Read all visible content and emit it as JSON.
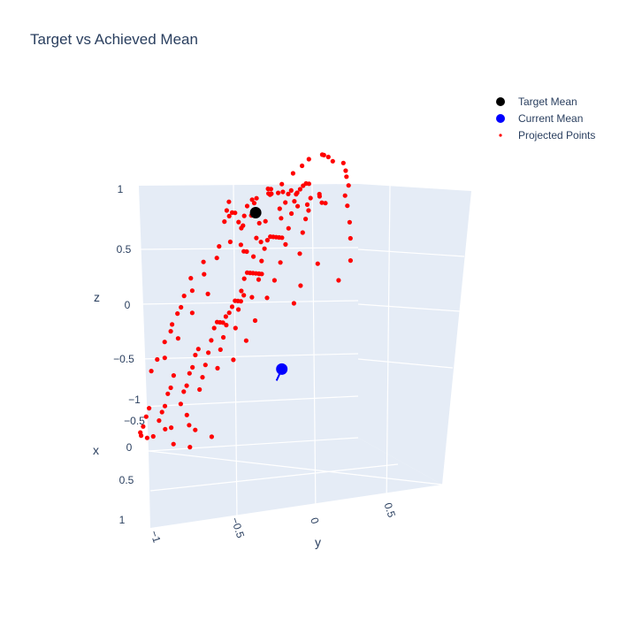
{
  "chart_data": {
    "type": "scatter",
    "title": "Target vs Achieved Mean",
    "axes": {
      "x": {
        "label": "x",
        "range": [
          -1,
          1
        ],
        "ticks": [
          "−1",
          "−0.5",
          "0",
          "0.5",
          "1"
        ]
      },
      "y": {
        "label": "y",
        "range": [
          -1,
          1
        ],
        "ticks": [
          "−1",
          "−0.5",
          "0",
          "0.5"
        ]
      },
      "z": {
        "label": "z",
        "range": [
          -1,
          1
        ],
        "ticks": [
          "1",
          "0.5",
          "0",
          "−0.5"
        ]
      }
    },
    "grid": true,
    "legend_position": "top-right",
    "colors": {
      "scene_bg": "#e5ecf6",
      "grid": "#ffffff",
      "text": "#2a3f5f"
    },
    "series": [
      {
        "name": "Target Mean",
        "color": "#000000",
        "marker": "circle-large",
        "points": [
          {
            "x": -0.55,
            "y": -0.75,
            "z": 0.55
          }
        ]
      },
      {
        "name": "Current Mean",
        "color": "#0000ff",
        "marker": "circle-large",
        "points": [
          {
            "x": 0.1,
            "y": 0.5,
            "z": -0.3
          }
        ]
      },
      {
        "name": "Projected Points",
        "color": "#ff0000",
        "marker": "circle-small",
        "points": [
          {
            "x": -0.9,
            "y": -0.35,
            "z": 0.95
          },
          {
            "x": -0.88,
            "y": -0.3,
            "z": 0.96
          },
          {
            "x": -0.85,
            "y": -0.2,
            "z": 0.97
          },
          {
            "x": -0.82,
            "y": -0.1,
            "z": 0.96
          },
          {
            "x": -0.85,
            "y": 0.0,
            "z": 0.95
          },
          {
            "x": -0.8,
            "y": 0.1,
            "z": 0.92
          },
          {
            "x": -0.75,
            "y": 0.18,
            "z": 0.9
          },
          {
            "x": -0.72,
            "y": 0.25,
            "z": 0.85
          },
          {
            "x": -0.65,
            "y": 0.3,
            "z": 0.8
          },
          {
            "x": -0.6,
            "y": 0.4,
            "z": 0.75
          },
          {
            "x": -0.55,
            "y": 0.5,
            "z": 0.65
          },
          {
            "x": -0.5,
            "y": 0.58,
            "z": 0.55
          },
          {
            "x": -0.45,
            "y": 0.65,
            "z": 0.4
          },
          {
            "x": -0.3,
            "y": 0.7,
            "z": 0.3
          },
          {
            "x": -0.88,
            "y": -0.5,
            "z": 0.9
          },
          {
            "x": -0.85,
            "y": -0.55,
            "z": 0.85
          },
          {
            "x": -0.8,
            "y": -0.6,
            "z": 0.8
          },
          {
            "x": -0.75,
            "y": -0.68,
            "z": 0.72
          },
          {
            "x": -0.7,
            "y": -0.75,
            "z": 0.65
          },
          {
            "x": -0.6,
            "y": -0.8,
            "z": 0.55
          },
          {
            "x": -0.5,
            "y": -0.85,
            "z": 0.45
          },
          {
            "x": -0.4,
            "y": -0.88,
            "z": 0.35
          },
          {
            "x": -0.3,
            "y": -0.92,
            "z": 0.25
          },
          {
            "x": -0.2,
            "y": -0.95,
            "z": 0.15
          },
          {
            "x": -0.1,
            "y": -0.97,
            "z": 0.05
          },
          {
            "x": 0.0,
            "y": -0.98,
            "z": -0.05
          },
          {
            "x": 0.1,
            "y": -0.96,
            "z": -0.15
          },
          {
            "x": 0.2,
            "y": -0.92,
            "z": -0.25
          },
          {
            "x": 0.3,
            "y": -0.88,
            "z": -0.35
          },
          {
            "x": 0.4,
            "y": -0.82,
            "z": -0.4
          },
          {
            "x": -0.65,
            "y": -0.55,
            "z": 0.5
          },
          {
            "x": -0.55,
            "y": -0.62,
            "z": 0.5
          },
          {
            "x": -0.6,
            "y": -0.5,
            "z": 0.6
          },
          {
            "x": -0.7,
            "y": -0.4,
            "z": 0.6
          },
          {
            "x": -0.72,
            "y": -0.3,
            "z": 0.62
          },
          {
            "x": -0.68,
            "y": -0.2,
            "z": 0.7
          },
          {
            "x": -0.75,
            "y": -0.1,
            "z": 0.65
          },
          {
            "x": -0.62,
            "y": 0.0,
            "z": 0.78
          },
          {
            "x": -0.55,
            "y": 0.1,
            "z": 0.8
          },
          {
            "x": -0.5,
            "y": 0.2,
            "z": 0.78
          },
          {
            "x": -0.4,
            "y": -0.6,
            "z": 0.6
          },
          {
            "x": -0.35,
            "y": -0.7,
            "z": 0.55
          },
          {
            "x": -0.25,
            "y": -0.75,
            "z": 0.58
          },
          {
            "x": -0.2,
            "y": -0.65,
            "z": 0.7
          },
          {
            "x": -0.15,
            "y": -0.55,
            "z": 0.8
          },
          {
            "x": -0.3,
            "y": -0.45,
            "z": 0.78
          },
          {
            "x": -0.4,
            "y": -0.35,
            "z": 0.8
          },
          {
            "x": -0.45,
            "y": -0.25,
            "z": 0.82
          },
          {
            "x": -0.3,
            "y": -0.2,
            "z": 0.9
          },
          {
            "x": -0.2,
            "y": -0.1,
            "z": 0.95
          },
          {
            "x": -0.35,
            "y": 0.0,
            "z": 0.9
          },
          {
            "x": -0.25,
            "y": 0.1,
            "z": 0.92
          },
          {
            "x": -0.15,
            "y": 0.2,
            "z": 0.9
          },
          {
            "x": -0.3,
            "y": 0.3,
            "z": 0.8
          },
          {
            "x": -0.2,
            "y": 0.4,
            "z": 0.78
          },
          {
            "x": -0.1,
            "y": 0.5,
            "z": 0.72
          },
          {
            "x": 0.0,
            "y": 0.6,
            "z": 0.6
          },
          {
            "x": -0.1,
            "y": 0.7,
            "z": 0.5
          },
          {
            "x": 0.1,
            "y": 0.75,
            "z": 0.4
          },
          {
            "x": 0.2,
            "y": 0.8,
            "z": 0.3
          },
          {
            "x": -0.1,
            "y": -0.4,
            "z": 0.75
          },
          {
            "x": 0.0,
            "y": -0.3,
            "z": 0.8
          },
          {
            "x": 0.1,
            "y": -0.2,
            "z": 0.82
          },
          {
            "x": 0.0,
            "y": -0.1,
            "z": 0.88
          },
          {
            "x": 0.1,
            "y": 0.0,
            "z": 0.85
          },
          {
            "x": 0.2,
            "y": 0.1,
            "z": 0.8
          },
          {
            "x": 0.1,
            "y": 0.2,
            "z": 0.82
          },
          {
            "x": 0.2,
            "y": 0.3,
            "z": 0.75
          },
          {
            "x": 0.3,
            "y": 0.4,
            "z": 0.65
          },
          {
            "x": 0.35,
            "y": 0.55,
            "z": 0.55
          },
          {
            "x": -0.6,
            "y": -0.75,
            "z": 0.3
          },
          {
            "x": -0.5,
            "y": -0.8,
            "z": 0.25
          },
          {
            "x": -0.4,
            "y": -0.7,
            "z": 0.3
          },
          {
            "x": -0.3,
            "y": -0.6,
            "z": 0.4
          },
          {
            "x": -0.2,
            "y": -0.75,
            "z": 0.4
          },
          {
            "x": -0.1,
            "y": -0.82,
            "z": 0.3
          },
          {
            "x": 0.0,
            "y": -0.85,
            "z": 0.2
          },
          {
            "x": 0.1,
            "y": -0.8,
            "z": 0.1
          },
          {
            "x": 0.2,
            "y": -0.75,
            "z": 0.0
          },
          {
            "x": 0.3,
            "y": -0.7,
            "z": -0.1
          },
          {
            "x": -0.55,
            "y": -0.4,
            "z": 0.4
          },
          {
            "x": -0.45,
            "y": -0.3,
            "z": 0.45
          },
          {
            "x": -0.35,
            "y": -0.2,
            "z": 0.5
          },
          {
            "x": -0.25,
            "y": -0.1,
            "z": 0.55
          },
          {
            "x": -0.15,
            "y": 0.0,
            "z": 0.6
          },
          {
            "x": -0.05,
            "y": 0.1,
            "z": 0.62
          },
          {
            "x": 0.05,
            "y": 0.2,
            "z": 0.6
          },
          {
            "x": 0.15,
            "y": 0.3,
            "z": 0.55
          },
          {
            "x": 0.25,
            "y": 0.4,
            "z": 0.45
          },
          {
            "x": 0.35,
            "y": 0.45,
            "z": 0.35
          },
          {
            "x": -0.5,
            "y": -0.6,
            "z": 0.1
          },
          {
            "x": -0.4,
            "y": -0.5,
            "z": 0.15
          },
          {
            "x": -0.3,
            "y": -0.4,
            "z": 0.2
          },
          {
            "x": -0.2,
            "y": -0.3,
            "z": 0.25
          },
          {
            "x": -0.1,
            "y": -0.2,
            "z": 0.3
          },
          {
            "x": 0.0,
            "y": -0.1,
            "z": 0.35
          },
          {
            "x": 0.1,
            "y": 0.0,
            "z": 0.35
          },
          {
            "x": 0.2,
            "y": 0.1,
            "z": 0.3
          },
          {
            "x": 0.3,
            "y": 0.2,
            "z": 0.2
          },
          {
            "x": 0.4,
            "y": 0.3,
            "z": 0.1
          },
          {
            "x": -0.4,
            "y": -0.7,
            "z": -0.05
          },
          {
            "x": -0.3,
            "y": -0.6,
            "z": -0.05
          },
          {
            "x": -0.2,
            "y": -0.5,
            "z": 0.0
          },
          {
            "x": -0.1,
            "y": -0.4,
            "z": 0.05
          },
          {
            "x": 0.0,
            "y": -0.3,
            "z": 0.05
          },
          {
            "x": 0.1,
            "y": -0.2,
            "z": 0.05
          },
          {
            "x": 0.2,
            "y": -0.1,
            "z": 0.0
          },
          {
            "x": 0.3,
            "y": 0.0,
            "z": -0.05
          },
          {
            "x": 0.4,
            "y": 0.1,
            "z": -0.1
          },
          {
            "x": 0.5,
            "y": 0.2,
            "z": -0.2
          },
          {
            "x": -0.3,
            "y": -0.8,
            "z": -0.2
          },
          {
            "x": -0.2,
            "y": -0.7,
            "z": -0.2
          },
          {
            "x": -0.1,
            "y": -0.6,
            "z": -0.15
          },
          {
            "x": 0.0,
            "y": -0.5,
            "z": -0.1
          },
          {
            "x": 0.1,
            "y": -0.4,
            "z": -0.1
          },
          {
            "x": 0.2,
            "y": -0.3,
            "z": -0.15
          },
          {
            "x": 0.3,
            "y": -0.2,
            "z": -0.2
          },
          {
            "x": 0.4,
            "y": -0.1,
            "z": -0.25
          },
          {
            "x": 0.5,
            "y": 0.0,
            "z": -0.3
          },
          {
            "x": 0.6,
            "y": 0.1,
            "z": -0.35
          },
          {
            "x": 0.0,
            "y": -0.75,
            "z": -0.35
          },
          {
            "x": 0.1,
            "y": -0.65,
            "z": -0.35
          },
          {
            "x": 0.2,
            "y": -0.55,
            "z": -0.4
          },
          {
            "x": 0.3,
            "y": -0.45,
            "z": -0.4
          },
          {
            "x": 0.4,
            "y": -0.35,
            "z": -0.45
          },
          {
            "x": 0.5,
            "y": -0.25,
            "z": -0.45
          },
          {
            "x": 0.6,
            "y": -0.15,
            "z": -0.5
          },
          {
            "x": 0.65,
            "y": 0.0,
            "z": -0.55
          },
          {
            "x": 0.7,
            "y": 0.1,
            "z": -0.6
          },
          {
            "x": 0.75,
            "y": 0.25,
            "z": -0.6
          },
          {
            "x": 0.2,
            "y": -0.8,
            "z": -0.5
          },
          {
            "x": 0.3,
            "y": -0.7,
            "z": -0.55
          },
          {
            "x": 0.4,
            "y": -0.6,
            "z": -0.55
          },
          {
            "x": 0.5,
            "y": -0.5,
            "z": -0.6
          },
          {
            "x": 0.6,
            "y": -0.4,
            "z": -0.6
          },
          {
            "x": 0.7,
            "y": -0.3,
            "z": -0.62
          },
          {
            "x": 0.75,
            "y": -0.15,
            "z": -0.65
          },
          {
            "x": 0.8,
            "y": 0.0,
            "z": -0.6
          },
          {
            "x": 0.4,
            "y": -0.85,
            "z": -0.7
          },
          {
            "x": 0.5,
            "y": -0.75,
            "z": -0.72
          },
          {
            "x": 0.6,
            "y": -0.65,
            "z": -0.75
          },
          {
            "x": 0.7,
            "y": -0.55,
            "z": -0.75
          },
          {
            "x": 0.8,
            "y": -0.4,
            "z": -0.72
          },
          {
            "x": 0.85,
            "y": -0.25,
            "z": -0.7
          },
          {
            "x": 0.9,
            "y": -0.1,
            "z": -0.65
          },
          {
            "x": 0.85,
            "y": 0.1,
            "z": -0.7
          },
          {
            "x": 0.8,
            "y": 0.25,
            "z": -0.72
          },
          {
            "x": 0.7,
            "y": 0.4,
            "z": -0.65
          },
          {
            "x": -0.2,
            "y": -0.9,
            "z": 0.0
          },
          {
            "x": -0.05,
            "y": -0.9,
            "z": -0.1
          },
          {
            "x": 0.1,
            "y": -0.88,
            "z": -0.25
          },
          {
            "x": 0.25,
            "y": -0.85,
            "z": -0.35
          },
          {
            "x": -0.6,
            "y": -0.65,
            "z": 0.7
          },
          {
            "x": -0.5,
            "y": -0.7,
            "z": 0.65
          },
          {
            "x": -0.45,
            "y": -0.6,
            "z": 0.72
          },
          {
            "x": -0.55,
            "y": -0.45,
            "z": 0.75
          },
          {
            "x": -0.65,
            "y": -0.35,
            "z": 0.72
          },
          {
            "x": -0.7,
            "y": -0.25,
            "z": 0.8
          },
          {
            "x": -0.6,
            "y": -0.15,
            "z": 0.85
          },
          {
            "x": -0.5,
            "y": -0.05,
            "z": 0.88
          },
          {
            "x": -0.4,
            "y": 0.05,
            "z": 0.9
          },
          {
            "x": -0.3,
            "y": 0.15,
            "z": 0.92
          },
          {
            "x": -0.2,
            "y": 0.25,
            "z": 0.9
          },
          {
            "x": -0.1,
            "y": 0.35,
            "z": 0.85
          },
          {
            "x": 0.0,
            "y": 0.45,
            "z": 0.78
          },
          {
            "x": 0.1,
            "y": 0.55,
            "z": 0.7
          },
          {
            "x": 0.2,
            "y": 0.62,
            "z": 0.6
          },
          {
            "x": 0.3,
            "y": 0.68,
            "z": 0.5
          },
          {
            "x": 0.4,
            "y": 0.72,
            "z": 0.4
          },
          {
            "x": 0.5,
            "y": 0.7,
            "z": 0.25
          },
          {
            "x": 0.55,
            "y": 0.65,
            "z": 0.1
          },
          {
            "x": 0.6,
            "y": 0.55,
            "z": -0.05
          }
        ]
      }
    ]
  }
}
